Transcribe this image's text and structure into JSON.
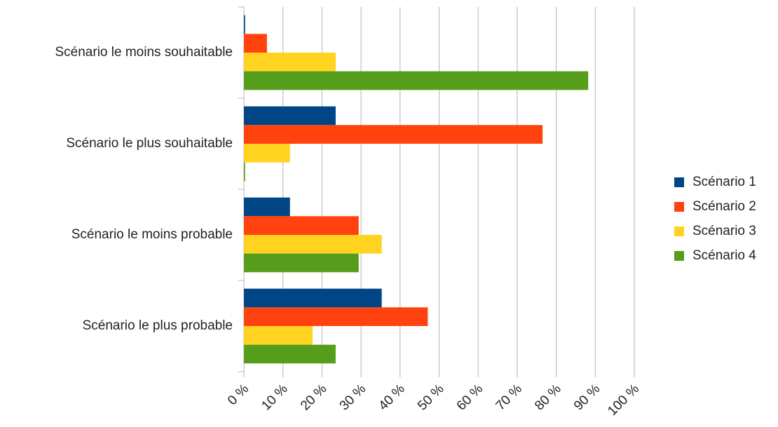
{
  "chart_data": {
    "type": "hbar",
    "categories": [
      "Scénario le moins souhaitable",
      "Scénario le plus souhaitable",
      "Scénario le moins probable",
      "Scénario le plus probable"
    ],
    "series": [
      {
        "name": "Scénario 1",
        "color": "#004586",
        "values": [
          0.3,
          23.5,
          11.8,
          35.3
        ]
      },
      {
        "name": "Scénario 2",
        "color": "#ff420e",
        "values": [
          5.9,
          76.5,
          29.4,
          47.1
        ]
      },
      {
        "name": "Scénario 3",
        "color": "#ffd320",
        "values": [
          23.5,
          11.8,
          35.3,
          17.6
        ]
      },
      {
        "name": "Scénario 4",
        "color": "#579d1c",
        "values": [
          88.2,
          0.3,
          29.4,
          23.5
        ]
      }
    ],
    "xlim": [
      0,
      100
    ],
    "xticks": [
      {
        "value": 0,
        "label": "0 %"
      },
      {
        "value": 10,
        "label": "10 %"
      },
      {
        "value": 20,
        "label": "20 %"
      },
      {
        "value": 30,
        "label": "30 %"
      },
      {
        "value": 40,
        "label": "40 %"
      },
      {
        "value": 50,
        "label": "50 %"
      },
      {
        "value": 60,
        "label": "60 %"
      },
      {
        "value": 70,
        "label": "70 %"
      },
      {
        "value": 80,
        "label": "80 %"
      },
      {
        "value": 90,
        "label": "90 %"
      },
      {
        "value": 100,
        "label": "100 %"
      }
    ],
    "grid": true,
    "legend": "right"
  }
}
